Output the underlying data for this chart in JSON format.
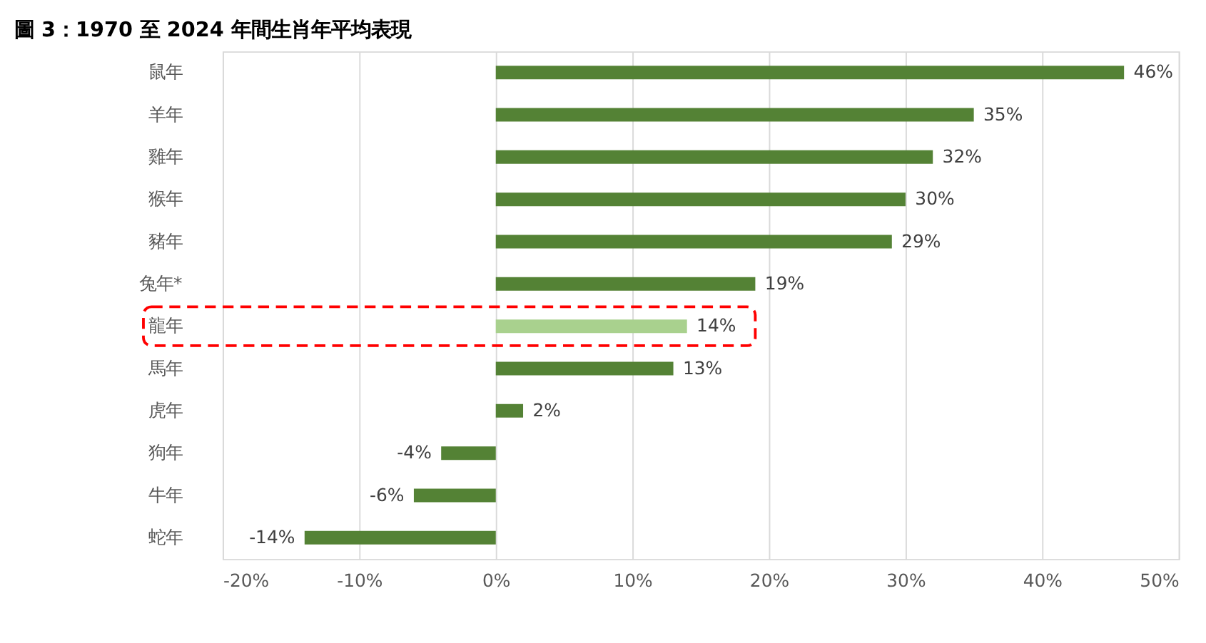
{
  "chart_data": {
    "type": "bar",
    "orientation": "horizontal",
    "title": "圖 3：1970 至 2024 年間生肖年平均表現",
    "categories": [
      "鼠年",
      "羊年",
      "雞年",
      "猴年",
      "豬年",
      "兔年*",
      "龍年",
      "馬年",
      "虎年",
      "狗年",
      "牛年",
      "蛇年"
    ],
    "values": [
      46,
      35,
      32,
      30,
      29,
      19,
      14,
      13,
      2,
      -4,
      -6,
      -14
    ],
    "value_labels": [
      "46%",
      "35%",
      "32%",
      "30%",
      "29%",
      "19%",
      "14%",
      "13%",
      "2%",
      "-4%",
      "-6%",
      "-14%"
    ],
    "colors": [
      "#548235",
      "#548235",
      "#548235",
      "#548235",
      "#548235",
      "#548235",
      "#a9d18e",
      "#548235",
      "#548235",
      "#548235",
      "#548235",
      "#548235"
    ],
    "xlim": [
      -20,
      50
    ],
    "xticks": [
      {
        "value": -20,
        "label": "-20%"
      },
      {
        "value": -10,
        "label": "-10%"
      },
      {
        "value": 0,
        "label": "0%"
      },
      {
        "value": 10,
        "label": "10%"
      },
      {
        "value": 20,
        "label": "20%"
      },
      {
        "value": 30,
        "label": "30%"
      },
      {
        "value": 40,
        "label": "40%"
      },
      {
        "value": 50,
        "label": "50%"
      }
    ],
    "grid": "x",
    "legend": false
  }
}
